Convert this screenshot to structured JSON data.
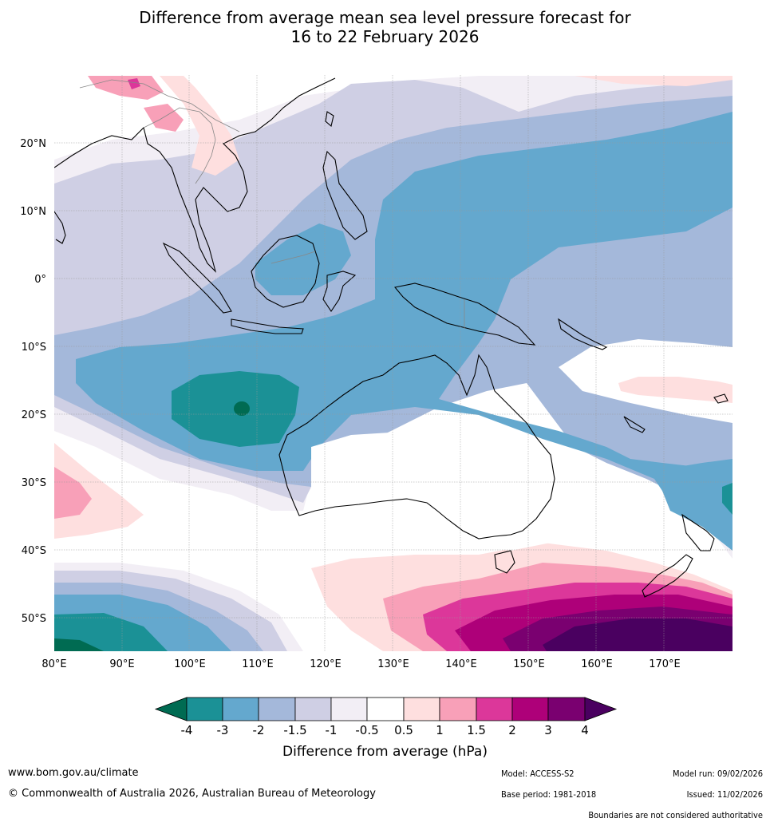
{
  "title_line1": "Difference from average mean sea level pressure forecast for",
  "title_line2": "16 to 22 February 2026",
  "map": {
    "lat_labels": [
      "20°N",
      "10°N",
      "0°",
      "10°S",
      "20°S",
      "30°S",
      "40°S",
      "50°S"
    ],
    "lon_labels": [
      "80°E",
      "90°E",
      "100°E",
      "110°E",
      "120°E",
      "130°E",
      "140°E",
      "150°E",
      "160°E",
      "170°E"
    ]
  },
  "colorbar": {
    "title": "Difference from average (hPa)",
    "tick_labels": [
      "-4",
      "-3",
      "-2",
      "-1.5",
      "-1",
      "-0.5",
      "0.5",
      "1",
      "1.5",
      "2",
      "3",
      "4"
    ],
    "colors": {
      "below_-4": "#006b52",
      "-4_-3": "#1b9196",
      "-3_-2": "#64a8ce",
      "-2_-1.5": "#a4b8da",
      "-1.5_-1": "#cfcfe4",
      "-1_-0.5": "#f2eef5",
      "-0.5_0.5": "#ffffff",
      "0.5_1": "#fedfdf",
      "1_1.5": "#f8a0b8",
      "1.5_2": "#dc379a",
      "2_3": "#ae0079",
      "3_4": "#7a0070",
      "above_4": "#4a0060"
    }
  },
  "footer": {
    "website": "www.bom.gov.au/climate",
    "copyright": "© Commonwealth of Australia 2026, Australian Bureau of Meteorology",
    "model": "Model: ACCESS-S2",
    "base_period": "Base period: 1981-2018",
    "model_run": "Model run: 09/02/2026",
    "issued": "Issued: 11/02/2026",
    "disclaimer": "Boundaries are not considered authoritative"
  }
}
